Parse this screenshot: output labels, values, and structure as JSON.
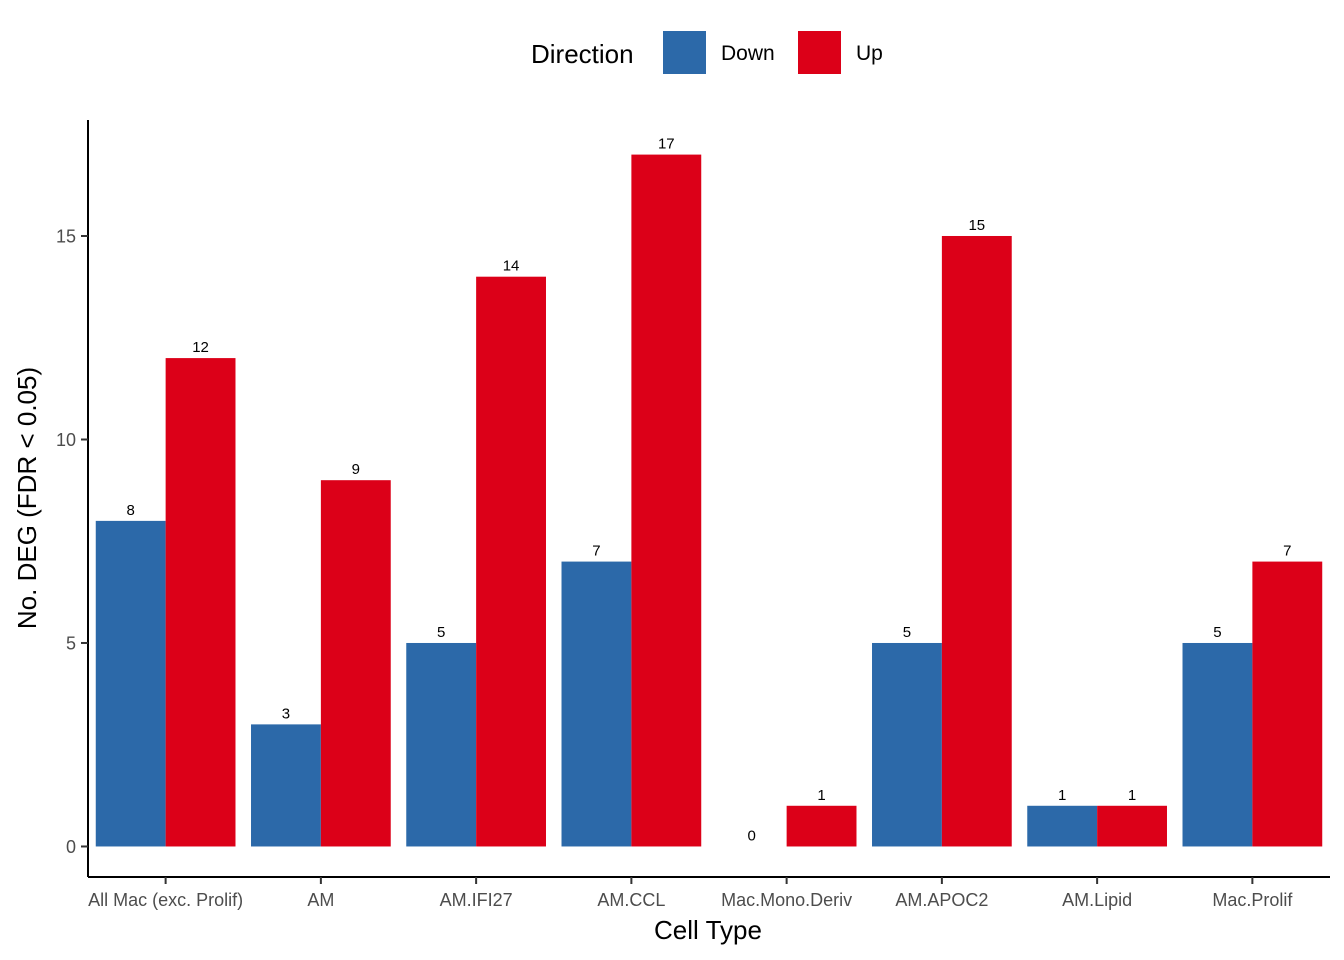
{
  "chart_data": {
    "type": "bar",
    "xlabel": "Cell Type",
    "ylabel": "No. DEG (FDR < 0.05)",
    "categories": [
      "All Mac (exc. Prolif)",
      "AM",
      "AM.IFI27",
      "AM.CCL",
      "Mac.Mono.Deriv",
      "AM.APOC2",
      "AM.Lipid",
      "Mac.Prolif"
    ],
    "series": [
      {
        "name": "Down",
        "color": "#2C69A9",
        "values": [
          8,
          3,
          5,
          7,
          0,
          5,
          1,
          5
        ]
      },
      {
        "name": "Up",
        "color": "#DC0018",
        "values": [
          12,
          9,
          14,
          17,
          1,
          15,
          1,
          7
        ]
      }
    ],
    "yticks": [
      0,
      5,
      10,
      15
    ],
    "ylim": [
      -0.75,
      17.85
    ],
    "grid": false,
    "legend": {
      "title": "Direction",
      "position": "top"
    }
  }
}
